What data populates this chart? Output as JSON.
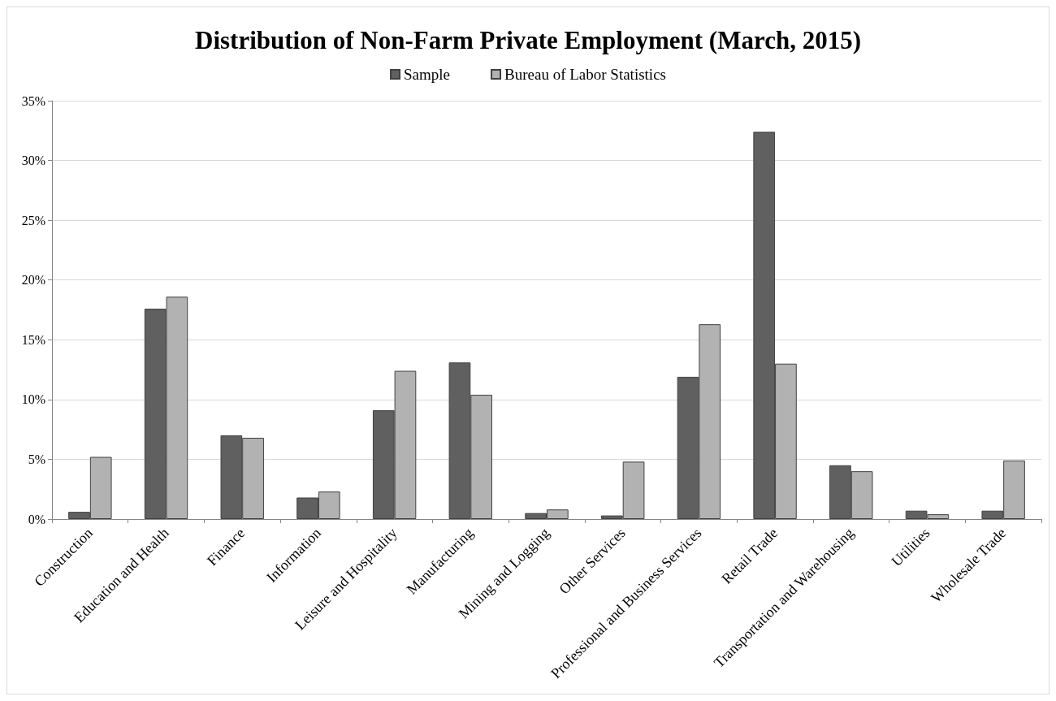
{
  "chart_data": {
    "type": "bar",
    "title": "Distribution of Non-Farm Private Employment (March, 2015)",
    "categories": [
      "Construction",
      "Education and Health",
      "Finance",
      "Information",
      "Leisure and Hospitality",
      "Manufacturing",
      "Mining and Logging",
      "Other Services",
      "Professional and Business Services",
      "Retail Trade",
      "Transportation and Warehousing",
      "Utilities",
      "Wholesale Trade"
    ],
    "series": [
      {
        "name": "Sample",
        "color": "#606060",
        "values": [
          0.6,
          17.6,
          7.0,
          1.8,
          9.1,
          13.1,
          0.5,
          0.3,
          11.9,
          32.4,
          4.5,
          0.7,
          0.7
        ]
      },
      {
        "name": "Bureau of Labor Statistics",
        "color": "#b2b2b2",
        "values": [
          5.2,
          18.6,
          6.8,
          2.3,
          12.4,
          10.4,
          0.8,
          4.8,
          16.3,
          13.0,
          4.0,
          0.4,
          4.9
        ]
      }
    ],
    "ylim": [
      0,
      35
    ],
    "yticks": [
      {
        "value": 0,
        "label": "0%"
      },
      {
        "value": 5,
        "label": "5%"
      },
      {
        "value": 10,
        "label": "10%"
      },
      {
        "value": 15,
        "label": "15%"
      },
      {
        "value": 20,
        "label": "20%"
      },
      {
        "value": 25,
        "label": "25%"
      },
      {
        "value": 30,
        "label": "30%"
      },
      {
        "value": 35,
        "label": "35%"
      }
    ],
    "grid": "y",
    "legend": "top"
  }
}
